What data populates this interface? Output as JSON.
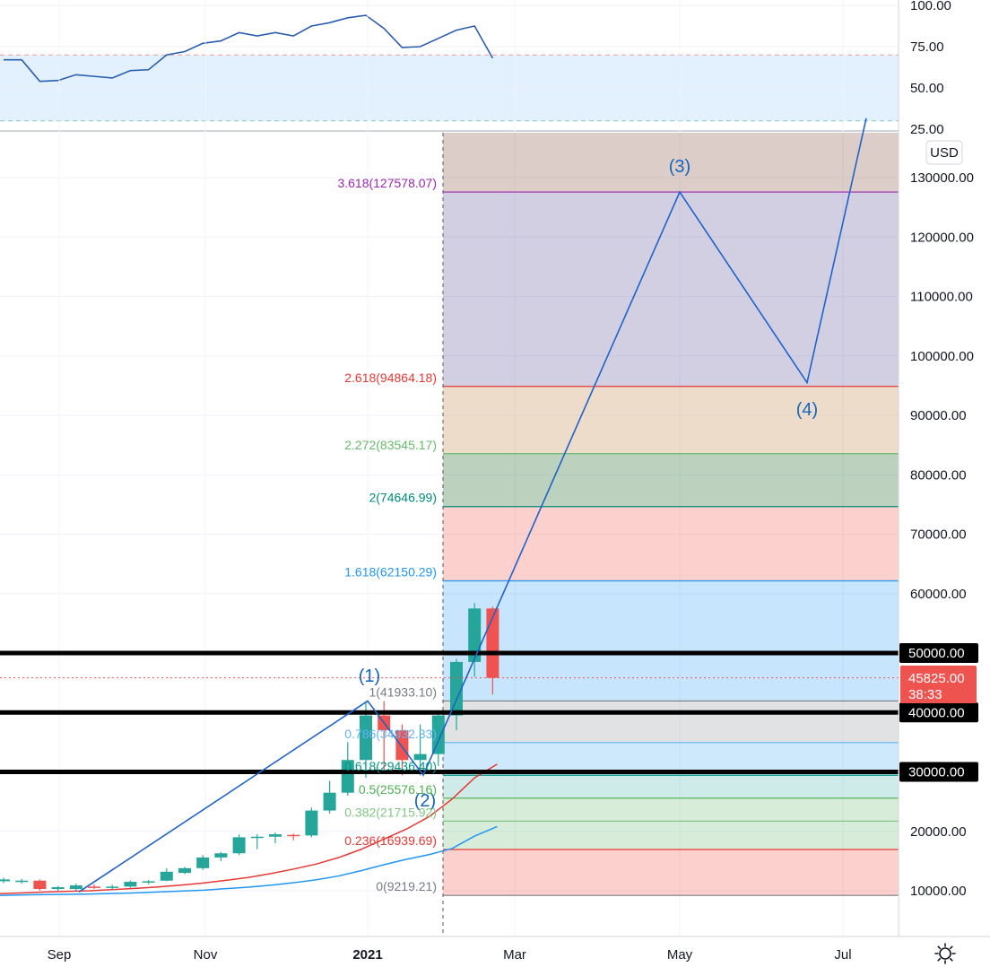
{
  "currency": "USD",
  "colors": {
    "up": "#26a69a",
    "down": "#ef5350",
    "wave": "#1e63c9",
    "rsi": "#2a5db0",
    "ema_red": "#e53935",
    "ema_blue": "#2196f3",
    "price_line": "#ef5350"
  },
  "chart_data": [
    {
      "type": "line",
      "name": "rsi-panel",
      "ylim": [
        25,
        100
      ],
      "y_ticks": [
        "100.00",
        "75.00",
        "50.00",
        "25.00"
      ],
      "band": [
        30,
        70
      ],
      "values": [
        67,
        67,
        54,
        54.5,
        58,
        57,
        56,
        60.5,
        61,
        70,
        72,
        77,
        78.5,
        83.5,
        81.5,
        83.5,
        81.5,
        87.5,
        89.5,
        92.5,
        94,
        86,
        74.5,
        75,
        80,
        85,
        87.5,
        68
      ]
    },
    {
      "type": "candlestick",
      "name": "price-panel",
      "ylim": [
        5000,
        140000
      ],
      "y_ticks": [
        "130000.00",
        "120000.00",
        "110000.00",
        "100000.00",
        "90000.00",
        "80000.00",
        "70000.00",
        "60000.00",
        "50000.00",
        "40000.00",
        "30000.00",
        "20000.00",
        "10000.00"
      ],
      "x_labels": [
        "Sep",
        "Nov",
        "2021",
        "Mar",
        "May",
        "Jul"
      ],
      "candles": [
        {
          "o": 11600,
          "h": 12200,
          "l": 11300,
          "c": 11900
        },
        {
          "o": 11500,
          "h": 12000,
          "l": 11200,
          "c": 11700
        },
        {
          "o": 11700,
          "h": 11900,
          "l": 10000,
          "c": 10300
        },
        {
          "o": 10300,
          "h": 10800,
          "l": 10000,
          "c": 10600
        },
        {
          "o": 10300,
          "h": 11200,
          "l": 10000,
          "c": 10900
        },
        {
          "o": 10700,
          "h": 11100,
          "l": 10300,
          "c": 10600
        },
        {
          "o": 10600,
          "h": 11000,
          "l": 10200,
          "c": 10700
        },
        {
          "o": 10700,
          "h": 11700,
          "l": 10500,
          "c": 11500
        },
        {
          "o": 11400,
          "h": 11800,
          "l": 11100,
          "c": 11600
        },
        {
          "o": 11700,
          "h": 13800,
          "l": 11600,
          "c": 13200
        },
        {
          "o": 13000,
          "h": 14000,
          "l": 12800,
          "c": 13800
        },
        {
          "o": 13800,
          "h": 16000,
          "l": 13500,
          "c": 15600
        },
        {
          "o": 15600,
          "h": 16500,
          "l": 15000,
          "c": 16300
        },
        {
          "o": 16300,
          "h": 19500,
          "l": 16000,
          "c": 19000
        },
        {
          "o": 19000,
          "h": 19500,
          "l": 17000,
          "c": 19100
        },
        {
          "o": 19100,
          "h": 19800,
          "l": 18000,
          "c": 19500
        },
        {
          "o": 19400,
          "h": 19600,
          "l": 18500,
          "c": 19200
        },
        {
          "o": 19300,
          "h": 24000,
          "l": 19000,
          "c": 23500
        },
        {
          "o": 23500,
          "h": 28500,
          "l": 23000,
          "c": 26500
        },
        {
          "o": 26500,
          "h": 35000,
          "l": 26000,
          "c": 32000
        },
        {
          "o": 32000,
          "h": 41900,
          "l": 29000,
          "c": 39500
        },
        {
          "o": 39500,
          "h": 41900,
          "l": 30000,
          "c": 37000
        },
        {
          "o": 37000,
          "h": 38000,
          "l": 29400,
          "c": 32000
        },
        {
          "o": 32000,
          "h": 38000,
          "l": 29400,
          "c": 33000
        },
        {
          "o": 33000,
          "h": 40000,
          "l": 31000,
          "c": 39500
        },
        {
          "o": 39500,
          "h": 49000,
          "l": 37000,
          "c": 48500
        },
        {
          "o": 48500,
          "h": 58400,
          "l": 46000,
          "c": 57500
        },
        {
          "o": 57500,
          "h": 57800,
          "l": 43000,
          "c": 45825
        }
      ],
      "ema_red": [
        9500,
        9650,
        9800,
        9900,
        10000,
        10200,
        10400,
        10650,
        10950,
        11300,
        11750,
        12250,
        12900,
        13650,
        14500,
        15600,
        17000,
        18700,
        20400,
        22500,
        25400,
        29000,
        31300
      ],
      "ema_blue": [
        9200,
        9300,
        9350,
        9400,
        9450,
        9550,
        9650,
        9800,
        9950,
        10100,
        10350,
        10600,
        10950,
        11350,
        11850,
        12500,
        13400,
        14400,
        15300,
        16100,
        17100,
        19200,
        20800
      ],
      "last_price": {
        "value": 45825,
        "label": "45825.00",
        "countdown": "38:33"
      },
      "support_lines": [
        {
          "value": 50000,
          "label": "50000.00"
        },
        {
          "value": 40000,
          "label": "40000.00"
        },
        {
          "value": 30000,
          "label": "30000.00"
        }
      ],
      "fib_levels": [
        {
          "ratio": "3.618",
          "value": 127578.07,
          "label": "3.618(127578.07)",
          "color": "#9c27b0"
        },
        {
          "ratio": "2.618",
          "value": 94864.18,
          "label": "2.618(94864.18)",
          "color": "#e53935"
        },
        {
          "ratio": "2.272",
          "value": 83545.17,
          "label": "2.272(83545.17)",
          "color": "#66bb6a"
        },
        {
          "ratio": "2",
          "value": 74646.99,
          "label": "2(74646.99)",
          "color": "#00897b"
        },
        {
          "ratio": "1.618",
          "value": 62150.29,
          "label": "1.618(62150.29)",
          "color": "#2196f3"
        },
        {
          "ratio": "1",
          "value": 41933.1,
          "label": "1(41933.10)",
          "color": "#787b86"
        },
        {
          "ratio": "0.786",
          "value": 34932.33,
          "label": "0.786(34932.33)",
          "color": "#64b5f6"
        },
        {
          "ratio": "0.618",
          "value": 29436.4,
          "label": "0.618(29436.40)",
          "color": "#009688"
        },
        {
          "ratio": "0.5",
          "value": 25576.16,
          "label": "0.5(25576.16)",
          "color": "#4caf50"
        },
        {
          "ratio": "0.382",
          "value": 21715.92,
          "label": "0.382(21715.92)",
          "color": "#81c784"
        },
        {
          "ratio": "0.236",
          "value": 16939.69,
          "label": "0.236(16939.69)",
          "color": "#e53935"
        },
        {
          "ratio": "0",
          "value": 9219.21,
          "label": "0(9219.21)",
          "color": "#787b86"
        }
      ],
      "waves": [
        {
          "label": "(1)",
          "value": 41933.1
        },
        {
          "label": "(2)",
          "value": 29436.4
        },
        {
          "label": "(3)",
          "value": 127578.07
        },
        {
          "label": "(4)",
          "value": 95500
        }
      ]
    }
  ]
}
